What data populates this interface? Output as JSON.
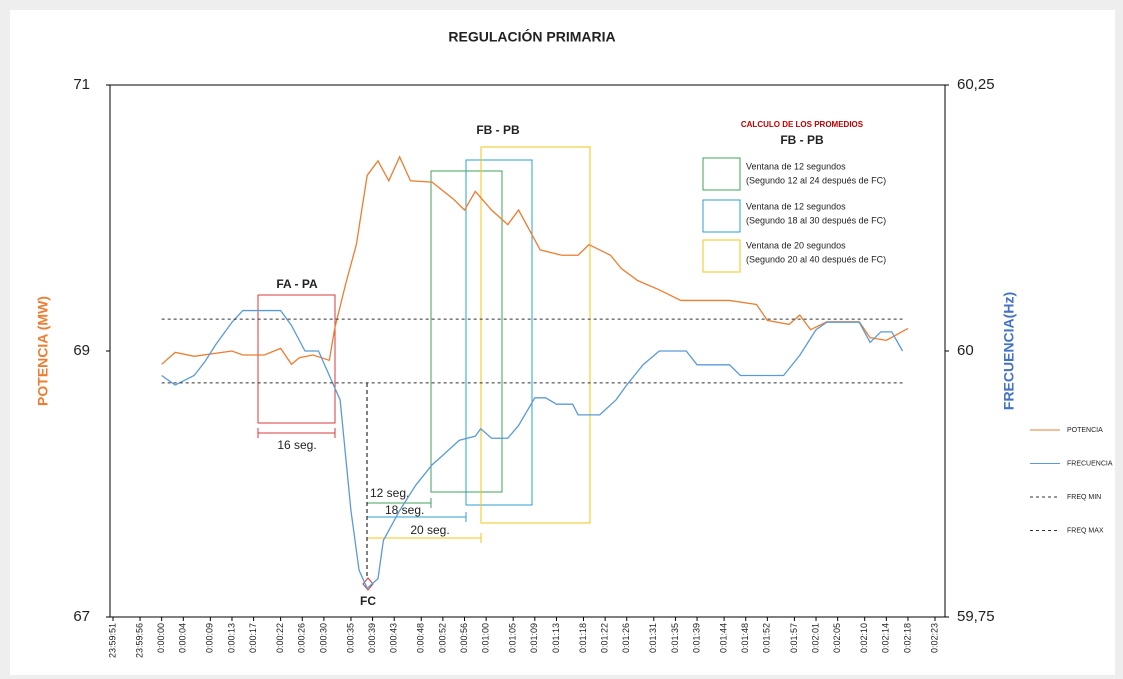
{
  "chart_data": {
    "type": "line",
    "title": "REGULACIÓN PRIMARIA",
    "y_label": "POTENCIA (MW)",
    "y2_label": "FRECUENCIA(Hz)",
    "xlim": [
      -9,
      143
    ],
    "xticks": [
      {
        "value": -9,
        "label": "23:59:51"
      },
      {
        "value": -4,
        "label": "23:59:56"
      },
      {
        "value": 0,
        "label": "0:00:00"
      },
      {
        "value": 4,
        "label": "0:00:04"
      },
      {
        "value": 9,
        "label": "0:00:09"
      },
      {
        "value": 13,
        "label": "0:00:13"
      },
      {
        "value": 17,
        "label": "0:00:17"
      },
      {
        "value": 22,
        "label": "0:00:22"
      },
      {
        "value": 26,
        "label": "0:00:26"
      },
      {
        "value": 30,
        "label": "0:00:30"
      },
      {
        "value": 35,
        "label": "0:00:35"
      },
      {
        "value": 39,
        "label": "0:00:39"
      },
      {
        "value": 43,
        "label": "0:00:43"
      },
      {
        "value": 48,
        "label": "0:00:48"
      },
      {
        "value": 52,
        "label": "0:00:52"
      },
      {
        "value": 56,
        "label": "0:00:56"
      },
      {
        "value": 60,
        "label": "0:01:00"
      },
      {
        "value": 65,
        "label": "0:01:05"
      },
      {
        "value": 69,
        "label": "0:01:09"
      },
      {
        "value": 73,
        "label": "0:01:13"
      },
      {
        "value": 78,
        "label": "0:01:18"
      },
      {
        "value": 82,
        "label": "0:01:22"
      },
      {
        "value": 86,
        "label": "0:01:26"
      },
      {
        "value": 91,
        "label": "0:01:31"
      },
      {
        "value": 95,
        "label": "0:01:35"
      },
      {
        "value": 99,
        "label": "0:01:39"
      },
      {
        "value": 104,
        "label": "0:01:44"
      },
      {
        "value": 108,
        "label": "0:01:48"
      },
      {
        "value": 112,
        "label": "0:01:52"
      },
      {
        "value": 117,
        "label": "0:01:57"
      },
      {
        "value": 121,
        "label": "0:02:01"
      },
      {
        "value": 125,
        "label": "0:02:05"
      },
      {
        "value": 130,
        "label": "0:02:10"
      },
      {
        "value": 134,
        "label": "0:02:14"
      },
      {
        "value": 138,
        "label": "0:02:18"
      },
      {
        "value": 143,
        "label": "0:02:23"
      }
    ],
    "ylim": [
      67,
      71
    ],
    "yticks": [
      67,
      69,
      71
    ],
    "y2lim": [
      59.75,
      60.25
    ],
    "y2ticks": [
      {
        "value": 59.75,
        "label": "59,75"
      },
      60,
      {
        "value": 60.25,
        "label": "60,25"
      }
    ],
    "series": [
      {
        "name": "POTENCIA",
        "color": "#ed7d31",
        "dash": false,
        "x": [
          0,
          2.5,
          6,
          13,
          15,
          19,
          22,
          24,
          25.5,
          28,
          31,
          32,
          34,
          36,
          38,
          40,
          42,
          44,
          46,
          50,
          54,
          56,
          58,
          61,
          64,
          66,
          70,
          74,
          77,
          79,
          83,
          85,
          88,
          92,
          96,
          99,
          105,
          110,
          112,
          116,
          118,
          120,
          123,
          129,
          131,
          134,
          138
        ],
        "values": [
          68.9,
          68.99,
          68.96,
          69.0,
          68.97,
          68.97,
          69.02,
          68.9,
          68.95,
          68.97,
          68.93,
          69.17,
          69.5,
          69.8,
          70.32,
          70.43,
          70.28,
          70.46,
          70.28,
          70.27,
          70.14,
          70.06,
          70.2,
          70.06,
          69.95,
          70.06,
          69.76,
          69.72,
          69.72,
          69.8,
          69.72,
          69.62,
          69.53,
          69.46,
          69.38,
          69.38,
          69.38,
          69.35,
          69.23,
          69.2,
          69.27,
          69.16,
          69.22,
          69.22,
          69.1,
          69.08,
          69.17
        ]
      },
      {
        "name": "FRECUENCIA",
        "color": "#5b9bd5",
        "dash": false,
        "axis": "y2",
        "x": [
          0,
          2.5,
          6,
          8,
          10,
          13,
          15,
          22,
          24,
          26.5,
          29,
          31,
          33,
          35,
          36.5,
          38,
          40,
          41,
          44,
          47,
          50,
          52,
          55,
          58,
          59,
          61,
          64,
          66,
          69,
          71,
          73,
          76,
          77,
          81,
          84,
          86,
          89,
          92,
          97,
          99,
          105,
          107,
          115,
          118,
          121,
          123,
          129,
          131,
          133,
          135,
          137
        ],
        "values": [
          59.977,
          59.968,
          59.977,
          59.99,
          60.006,
          60.027,
          60.038,
          60.038,
          60.024,
          60.0,
          60.0,
          59.977,
          59.954,
          59.85,
          59.794,
          59.777,
          59.786,
          59.822,
          59.85,
          59.874,
          59.893,
          59.902,
          59.916,
          59.92,
          59.927,
          59.918,
          59.918,
          59.93,
          59.956,
          59.956,
          59.95,
          59.95,
          59.94,
          59.94,
          59.954,
          59.968,
          59.987,
          60.0,
          60.0,
          59.987,
          59.987,
          59.977,
          59.977,
          59.996,
          60.02,
          60.027,
          60.027,
          60.008,
          60.018,
          60.018,
          60.0
        ]
      },
      {
        "name": "FREQ MIN",
        "color": "#333333",
        "dash": true,
        "axis": "y2",
        "x": [
          0,
          137
        ],
        "values": [
          59.97,
          59.97
        ]
      },
      {
        "name": "FREQ MAX",
        "color": "#333333",
        "dash": true,
        "axis": "y2",
        "x": [
          0,
          137
        ],
        "values": [
          60.03,
          60.03
        ]
      }
    ],
    "annotations": {
      "fa_pa": "FA - PA",
      "fb_pb": "FB  -  PB",
      "s16": "16 seg.",
      "s12": "12 seg.",
      "s18": "18 seg.",
      "s20": "20 seg.",
      "fc": "FC",
      "box_title": "CALCULO DE LOS PROMEDIOS",
      "box_sub": "FB  -  PB",
      "w1a": "Ventana de 12 segundos",
      "w1b": "(Segundo 12 al 24 después de FC)",
      "w2a": "Ventana de 12 segundos",
      "w2b": "(Segundo 18 al 30 después de FC)",
      "w3a": "Ventana de 20 segundos",
      "w3b": "(Segundo 20 al 40 después de FC)"
    }
  }
}
